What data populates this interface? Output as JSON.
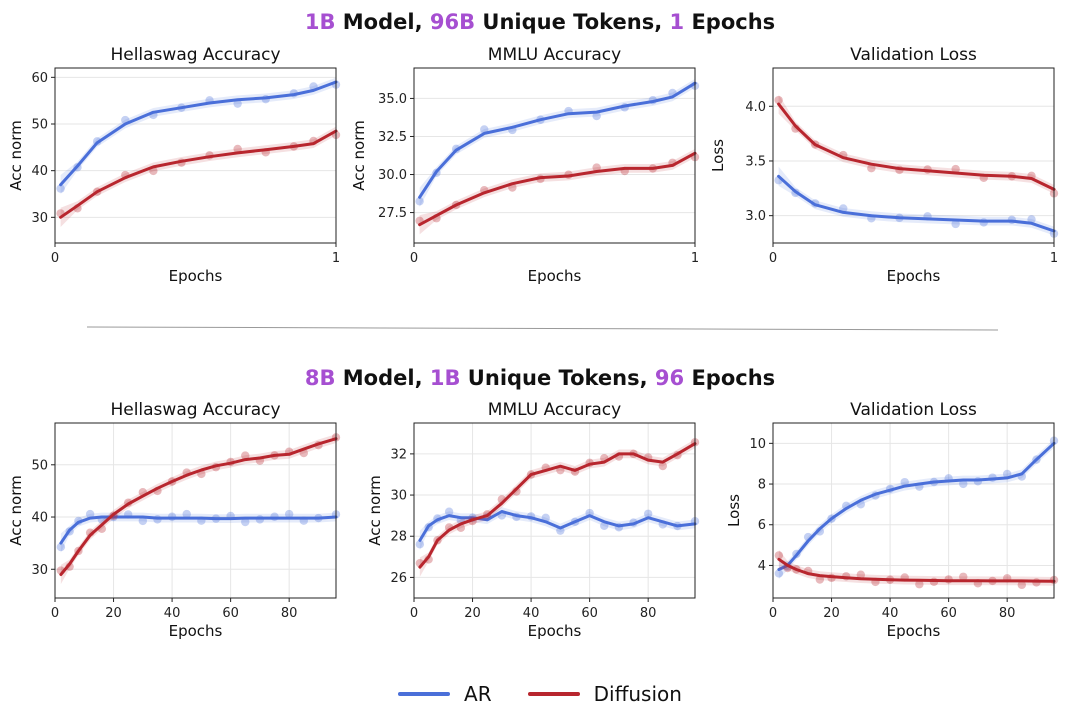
{
  "rows": [
    {
      "title_parts": [
        "1B",
        " Model, ",
        "96B",
        " Unique Tokens, ",
        "1",
        " Epochs"
      ]
    },
    {
      "title_parts": [
        "8B",
        " Model, ",
        "1B",
        " Unique Tokens, ",
        "96",
        " Epochs"
      ]
    }
  ],
  "legend": [
    {
      "label": "AR",
      "color": "#4a6fd9"
    },
    {
      "label": "Diffusion",
      "color": "#b8262e"
    }
  ],
  "colors": {
    "ar": "#4a6fd9",
    "diffusion": "#b8262e",
    "highlight": "#a64fd1"
  },
  "chart_data": [
    {
      "id": "r1-hellaswag",
      "type": "line",
      "title": "Hellaswag Accuracy",
      "xlabel": "Epochs",
      "ylabel": "Acc norm",
      "xlim": [
        0,
        1
      ],
      "ylim": [
        24.5,
        62
      ],
      "xticks": [
        0,
        1
      ],
      "yticks": [
        30,
        40,
        50,
        60
      ],
      "x": [
        0.02,
        0.08,
        0.15,
        0.25,
        0.35,
        0.45,
        0.55,
        0.65,
        0.75,
        0.85,
        0.92,
        1.0
      ],
      "series": [
        {
          "name": "AR",
          "values": [
            37,
            41,
            46,
            50,
            52.5,
            53.5,
            54.5,
            55.2,
            55.6,
            56.3,
            57.2,
            59
          ]
        },
        {
          "name": "Diffusion",
          "values": [
            30,
            32.5,
            35.5,
            38.5,
            40.8,
            42,
            43,
            43.8,
            44.5,
            45.2,
            45.8,
            48.5
          ]
        }
      ]
    },
    {
      "id": "r1-mmlu",
      "type": "line",
      "title": "MMLU Accuracy",
      "xlabel": "Epochs",
      "ylabel": "Acc norm",
      "xlim": [
        0,
        1
      ],
      "ylim": [
        25.5,
        37
      ],
      "xticks": [
        0,
        1
      ],
      "yticks": [
        27.5,
        30.0,
        32.5,
        35.0
      ],
      "ytick_labels": [
        "27.5",
        "30.0",
        "32.5",
        "35.0"
      ],
      "x": [
        0.02,
        0.08,
        0.15,
        0.25,
        0.35,
        0.45,
        0.55,
        0.65,
        0.75,
        0.85,
        0.92,
        1.0
      ],
      "series": [
        {
          "name": "AR",
          "values": [
            28.5,
            30.2,
            31.6,
            32.7,
            33.1,
            33.6,
            34,
            34.1,
            34.5,
            34.8,
            35.1,
            36
          ]
        },
        {
          "name": "Diffusion",
          "values": [
            26.7,
            27.3,
            28,
            28.8,
            29.4,
            29.8,
            29.9,
            30.2,
            30.4,
            30.4,
            30.6,
            31.4
          ]
        }
      ]
    },
    {
      "id": "r1-loss",
      "type": "line",
      "title": "Validation Loss",
      "xlabel": "Epochs",
      "ylabel": "Loss",
      "xlim": [
        0,
        1
      ],
      "ylim": [
        2.75,
        4.35
      ],
      "xticks": [
        0,
        1
      ],
      "yticks": [
        3.0,
        3.5,
        4.0
      ],
      "ytick_labels": [
        "3.0",
        "3.5",
        "4.0"
      ],
      "x": [
        0.02,
        0.08,
        0.15,
        0.25,
        0.35,
        0.45,
        0.55,
        0.65,
        0.75,
        0.85,
        0.92,
        1.0
      ],
      "series": [
        {
          "name": "AR",
          "values": [
            3.36,
            3.22,
            3.1,
            3.03,
            3.0,
            2.98,
            2.97,
            2.96,
            2.95,
            2.95,
            2.93,
            2.86
          ]
        },
        {
          "name": "Diffusion",
          "values": [
            4.02,
            3.82,
            3.65,
            3.53,
            3.47,
            3.43,
            3.41,
            3.39,
            3.37,
            3.36,
            3.34,
            3.24
          ]
        }
      ]
    },
    {
      "id": "r2-hellaswag",
      "type": "line",
      "title": "Hellaswag Accuracy",
      "xlabel": "Epochs",
      "ylabel": "Acc norm",
      "xlim": [
        0,
        96
      ],
      "ylim": [
        24.5,
        58
      ],
      "xticks": [
        0,
        20,
        40,
        60,
        80
      ],
      "yticks": [
        30,
        40,
        50
      ],
      "x": [
        2,
        5,
        8,
        12,
        16,
        20,
        25,
        30,
        35,
        40,
        45,
        50,
        55,
        60,
        65,
        70,
        75,
        80,
        85,
        90,
        96
      ],
      "series": [
        {
          "name": "AR",
          "values": [
            35,
            37.5,
            39,
            39.8,
            40,
            40,
            40,
            40,
            39.8,
            39.8,
            39.8,
            39.8,
            39.7,
            39.7,
            39.8,
            39.8,
            39.8,
            39.8,
            39.8,
            39.8,
            40
          ]
        },
        {
          "name": "Diffusion",
          "values": [
            29,
            31,
            33.5,
            36.5,
            38.5,
            40.5,
            42.5,
            44,
            45.5,
            46.8,
            48,
            49,
            49.8,
            50.3,
            51,
            51.3,
            51.8,
            52,
            53,
            54,
            55
          ]
        }
      ]
    },
    {
      "id": "r2-mmlu",
      "type": "line",
      "title": "MMLU Accuracy",
      "xlabel": "Epochs",
      "ylabel": "Acc norm",
      "xlim": [
        0,
        96
      ],
      "ylim": [
        25,
        33.5
      ],
      "xticks": [
        0,
        20,
        40,
        60,
        80
      ],
      "yticks": [
        26,
        28,
        30,
        32
      ],
      "x": [
        2,
        5,
        8,
        12,
        16,
        20,
        25,
        30,
        35,
        40,
        45,
        50,
        55,
        60,
        65,
        70,
        75,
        80,
        85,
        90,
        96
      ],
      "series": [
        {
          "name": "AR",
          "values": [
            27.8,
            28.5,
            28.8,
            29,
            28.9,
            28.9,
            28.8,
            29.2,
            29,
            28.9,
            28.7,
            28.4,
            28.7,
            29,
            28.7,
            28.5,
            28.6,
            28.9,
            28.7,
            28.5,
            28.6
          ]
        },
        {
          "name": "Diffusion",
          "values": [
            26.5,
            27,
            27.8,
            28.3,
            28.6,
            28.8,
            29,
            29.6,
            30.3,
            31,
            31.2,
            31.4,
            31.2,
            31.5,
            31.6,
            32,
            32,
            31.7,
            31.6,
            32,
            32.5
          ]
        }
      ]
    },
    {
      "id": "r2-loss",
      "type": "line",
      "title": "Validation Loss",
      "xlabel": "Epochs",
      "ylabel": "Loss",
      "xlim": [
        0,
        96
      ],
      "ylim": [
        2.4,
        11
      ],
      "xticks": [
        0,
        20,
        40,
        60,
        80
      ],
      "yticks": [
        4,
        6,
        8,
        10
      ],
      "x": [
        2,
        5,
        8,
        12,
        16,
        20,
        25,
        30,
        35,
        40,
        45,
        50,
        55,
        60,
        65,
        70,
        75,
        80,
        85,
        90,
        96
      ],
      "series": [
        {
          "name": "AR",
          "values": [
            3.8,
            4.0,
            4.5,
            5.2,
            5.8,
            6.3,
            6.8,
            7.2,
            7.5,
            7.7,
            7.9,
            8.0,
            8.1,
            8.15,
            8.2,
            8.2,
            8.25,
            8.3,
            8.5,
            9.2,
            10
          ]
        },
        {
          "name": "Diffusion",
          "values": [
            4.3,
            4.0,
            3.8,
            3.6,
            3.5,
            3.45,
            3.4,
            3.35,
            3.32,
            3.3,
            3.28,
            3.27,
            3.26,
            3.25,
            3.25,
            3.25,
            3.24,
            3.24,
            3.24,
            3.23,
            3.22
          ]
        }
      ]
    }
  ]
}
